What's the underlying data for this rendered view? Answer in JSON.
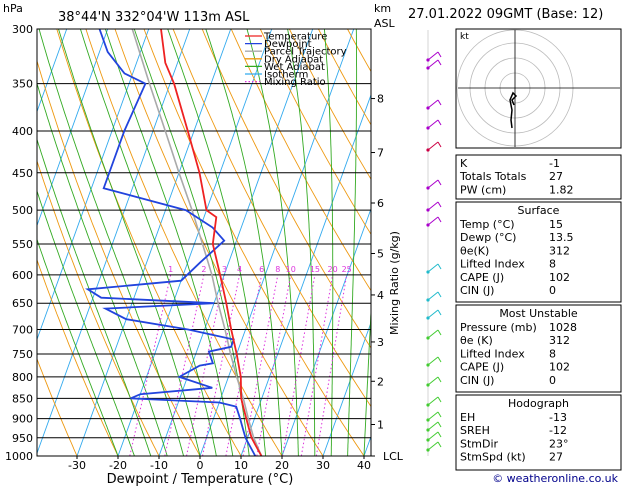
{
  "header": {
    "location": "38°44'N  332°04'W  113m  ASL",
    "datetime": "27.01.2022  09GMT  (Base: 12)",
    "left_unit": "hPa",
    "right_unit_km": "km",
    "right_unit_asl": "ASL",
    "hodo_label": "kt"
  },
  "chart_data": {
    "type": "line",
    "title": "",
    "xlabel": "Dewpoint / Temperature (°C)",
    "ylabel": "",
    "right_axis_label": "Mixing Ratio (g/kg)",
    "xlim": [
      -40,
      40
    ],
    "ylim": [
      1000,
      300
    ],
    "y_scale": "log",
    "grid": true,
    "legend_position": "top-left",
    "x_ticks": [
      "-30",
      "-20",
      "-10",
      "0",
      "10",
      "20",
      "30",
      "40"
    ],
    "pressure_ticks": [
      300,
      350,
      400,
      450,
      500,
      550,
      600,
      650,
      700,
      750,
      800,
      850,
      900,
      950,
      1000
    ],
    "height_ticks": [
      {
        "label": "8",
        "pressure": 365
      },
      {
        "label": "7",
        "pressure": 425
      },
      {
        "label": "6",
        "pressure": 490
      },
      {
        "label": "5",
        "pressure": 565
      },
      {
        "label": "4",
        "pressure": 635
      },
      {
        "label": "3",
        "pressure": 725
      },
      {
        "label": "2",
        "pressure": 810
      },
      {
        "label": "1",
        "pressure": 915
      },
      {
        "label": "LCL",
        "pressure": 1000
      }
    ],
    "mixing_ratio_labels": [
      "1",
      "2",
      "3",
      "4",
      "6",
      "8",
      "10",
      "15",
      "20",
      "25"
    ],
    "legend": [
      {
        "name": "Temperature",
        "color": "#ee2222",
        "style": "solid"
      },
      {
        "name": "Dewpoint",
        "color": "#2244dd",
        "style": "solid"
      },
      {
        "name": "Parcel Trajectory",
        "color": "#aaaaaa",
        "style": "solid"
      },
      {
        "name": "Dry Adiabat",
        "color": "#ee9911",
        "style": "solid"
      },
      {
        "name": "Wet Adiabat",
        "color": "#33aa22",
        "style": "solid"
      },
      {
        "name": "Isotherm",
        "color": "#33aaee",
        "style": "solid"
      },
      {
        "name": "Mixing Ratio",
        "color": "#dd33dd",
        "style": "dotted"
      }
    ],
    "series": [
      {
        "name": "Temperature",
        "color": "#ee2222",
        "points": [
          {
            "p": 1000,
            "t": 15
          },
          {
            "p": 975,
            "t": 13
          },
          {
            "p": 950,
            "t": 11
          },
          {
            "p": 925,
            "t": 9.5
          },
          {
            "p": 900,
            "t": 8
          },
          {
            "p": 875,
            "t": 6.5
          },
          {
            "p": 850,
            "t": 5
          },
          {
            "p": 800,
            "t": 3
          },
          {
            "p": 750,
            "t": 0
          },
          {
            "p": 700,
            "t": -3.5
          },
          {
            "p": 650,
            "t": -7
          },
          {
            "p": 600,
            "t": -11
          },
          {
            "p": 550,
            "t": -15.5
          },
          {
            "p": 510,
            "t": -17
          },
          {
            "p": 500,
            "t": -20
          },
          {
            "p": 450,
            "t": -25
          },
          {
            "p": 400,
            "t": -31.5
          },
          {
            "p": 350,
            "t": -39
          },
          {
            "p": 330,
            "t": -43
          },
          {
            "p": 300,
            "t": -47
          }
        ]
      },
      {
        "name": "Dewpoint",
        "color": "#2244dd",
        "points": [
          {
            "p": 1000,
            "t": 13.5
          },
          {
            "p": 975,
            "t": 11.5
          },
          {
            "p": 950,
            "t": 9.5
          },
          {
            "p": 925,
            "t": 8
          },
          {
            "p": 900,
            "t": 6.5
          },
          {
            "p": 870,
            "t": 4.5
          },
          {
            "p": 860,
            "t": 0
          },
          {
            "p": 850,
            "t": -22
          },
          {
            "p": 840,
            "t": -20
          },
          {
            "p": 825,
            "t": -3
          },
          {
            "p": 800,
            "t": -12
          },
          {
            "p": 775,
            "t": -8
          },
          {
            "p": 770,
            "t": -5
          },
          {
            "p": 745,
            "t": -7
          },
          {
            "p": 735,
            "t": -2
          },
          {
            "p": 720,
            "t": -2
          },
          {
            "p": 700,
            "t": -14
          },
          {
            "p": 680,
            "t": -30
          },
          {
            "p": 660,
            "t": -36
          },
          {
            "p": 650,
            "t": -10
          },
          {
            "p": 640,
            "t": -38
          },
          {
            "p": 625,
            "t": -42
          },
          {
            "p": 610,
            "t": -20
          },
          {
            "p": 580,
            "t": -17
          },
          {
            "p": 545,
            "t": -13
          },
          {
            "p": 525,
            "t": -17
          },
          {
            "p": 500,
            "t": -25
          },
          {
            "p": 470,
            "t": -47
          },
          {
            "p": 400,
            "t": -47
          },
          {
            "p": 350,
            "t": -46
          },
          {
            "p": 340,
            "t": -52
          },
          {
            "p": 320,
            "t": -58
          },
          {
            "p": 300,
            "t": -62
          }
        ]
      },
      {
        "name": "Parcel Trajectory",
        "color": "#aaaaaa",
        "points": [
          {
            "p": 1000,
            "t": 15
          },
          {
            "p": 950,
            "t": 11.5
          },
          {
            "p": 900,
            "t": 8.5
          },
          {
            "p": 850,
            "t": 5.5
          },
          {
            "p": 800,
            "t": 2
          },
          {
            "p": 750,
            "t": -1.5
          },
          {
            "p": 700,
            "t": -5
          },
          {
            "p": 650,
            "t": -9
          },
          {
            "p": 600,
            "t": -13
          },
          {
            "p": 550,
            "t": -18
          },
          {
            "p": 500,
            "t": -23.5
          },
          {
            "p": 450,
            "t": -30
          },
          {
            "p": 400,
            "t": -37
          },
          {
            "p": 350,
            "t": -45
          },
          {
            "p": 300,
            "t": -54
          }
        ]
      }
    ]
  },
  "indices": {
    "rows": [
      {
        "label": "K",
        "value": "-1"
      },
      {
        "label": "Totals Totals",
        "value": "27"
      },
      {
        "label": "PW (cm)",
        "value": "1.82"
      }
    ]
  },
  "surface": {
    "title": "Surface",
    "rows": [
      {
        "label": "Temp (°C)",
        "value": "15"
      },
      {
        "label": "Dewp (°C)",
        "value": "13.5"
      },
      {
        "label": "θe(K)",
        "value": "312"
      },
      {
        "label": "Lifted Index",
        "value": "8"
      },
      {
        "label": "CAPE (J)",
        "value": "102"
      },
      {
        "label": "CIN (J)",
        "value": "0"
      }
    ]
  },
  "most_unstable": {
    "title": "Most Unstable",
    "rows": [
      {
        "label": "Pressure (mb)",
        "value": "1028"
      },
      {
        "label": "θe (K)",
        "value": "312"
      },
      {
        "label": "Lifted Index",
        "value": "8"
      },
      {
        "label": "CAPE (J)",
        "value": "102"
      },
      {
        "label": "CIN (J)",
        "value": "0"
      }
    ]
  },
  "hodograph_stats": {
    "title": "Hodograph",
    "rows": [
      {
        "label": "EH",
        "value": "-13"
      },
      {
        "label": "SREH",
        "value": "-12"
      },
      {
        "label": "StmDir",
        "value": "23°"
      },
      {
        "label": "StmSpd (kt)",
        "value": "27"
      }
    ]
  },
  "footer": {
    "credit": "© weatheronline.co.uk"
  }
}
